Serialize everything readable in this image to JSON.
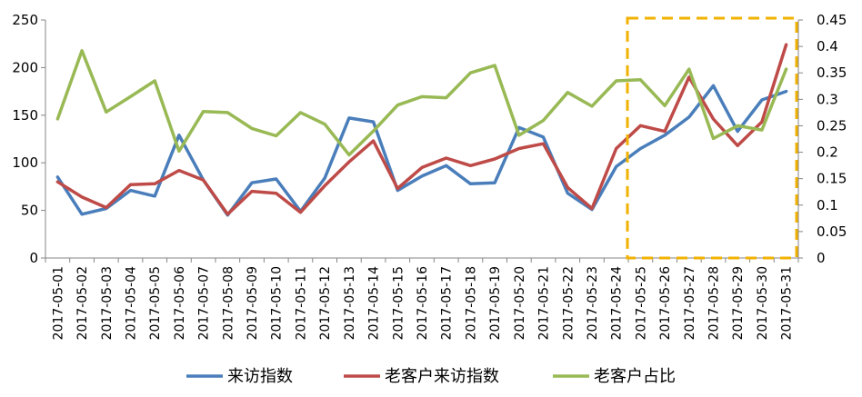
{
  "chart_data": {
    "type": "line",
    "x": [
      "2017-05-01",
      "2017-05-02",
      "2017-05-03",
      "2017-05-04",
      "2017-05-05",
      "2017-05-06",
      "2017-05-07",
      "2017-05-08",
      "2017-05-09",
      "2017-05-10",
      "2017-05-11",
      "2017-05-12",
      "2017-05-13",
      "2017-05-14",
      "2017-05-15",
      "2017-05-16",
      "2017-05-17",
      "2017-05-18",
      "2017-05-19",
      "2017-05-20",
      "2017-05-21",
      "2017-05-22",
      "2017-05-23",
      "2017-05-24",
      "2017-05-25",
      "2017-05-26",
      "2017-05-27",
      "2017-05-28",
      "2017-05-29",
      "2017-05-30",
      "2017-05-31"
    ],
    "y_left": {
      "min": 0,
      "max": 250,
      "ticks": [
        "0",
        "50",
        "100",
        "150",
        "200",
        "250"
      ]
    },
    "y_right": {
      "min": 0,
      "max": 0.45,
      "ticks": [
        "0",
        "0.05",
        "0.1",
        "0.15",
        "0.2",
        "0.25",
        "0.3",
        "0.35",
        "0.4",
        "0.45"
      ]
    },
    "series": [
      {
        "name": "来访指数",
        "axis": "left",
        "color": "#4a7ebb",
        "values": [
          85,
          46,
          52,
          71,
          65,
          129,
          82,
          45,
          79,
          83,
          49,
          84,
          147,
          143,
          71,
          86,
          97,
          78,
          79,
          137,
          127,
          68,
          51,
          96,
          115,
          129,
          148,
          181,
          133,
          166,
          175
        ]
      },
      {
        "name": "老客户来访指数",
        "axis": "left",
        "color": "#be4b48",
        "values": [
          80,
          64,
          53,
          77,
          78,
          92,
          82,
          46,
          70,
          68,
          48,
          76,
          101,
          123,
          73,
          95,
          105,
          97,
          104,
          115,
          120,
          74,
          52,
          115,
          139,
          133,
          190,
          146,
          118,
          143,
          224
        ]
      },
      {
        "name": "老客户占比",
        "axis": "right",
        "color": "#98b954",
        "values": [
          0.263,
          0.392,
          0.276,
          0.305,
          0.335,
          0.202,
          0.277,
          0.275,
          0.245,
          0.231,
          0.275,
          0.253,
          0.195,
          0.24,
          0.289,
          0.305,
          0.303,
          0.35,
          0.364,
          0.232,
          0.26,
          0.313,
          0.287,
          0.335,
          0.337,
          0.288,
          0.357,
          0.226,
          0.25,
          0.242,
          0.357
        ]
      }
    ],
    "highlight": {
      "from": "2017-05-25",
      "to": "2017-05-31",
      "color": "#f2b200"
    },
    "legend_position": "bottom",
    "grid": false
  }
}
